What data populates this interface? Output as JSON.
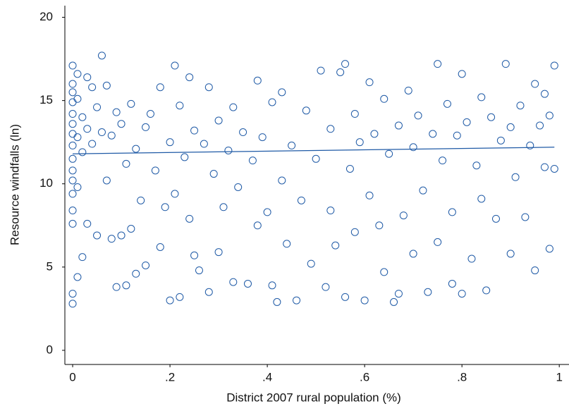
{
  "chart_data": {
    "type": "scatter",
    "x_label": "District 2007 rural population (%)",
    "y_label": "Resource windfalls (ln)",
    "xlim": [
      -0.016,
      1.02
    ],
    "ylim": [
      -0.85,
      20.7
    ],
    "xticks": [
      0,
      {
        "value": 0.2,
        "label": ".2"
      },
      {
        "value": 0.4,
        "label": ".4"
      },
      {
        "value": 0.6,
        "label": ".6"
      },
      {
        "value": 0.8,
        "label": ".8"
      },
      1
    ],
    "yticks": [
      0,
      5,
      10,
      15,
      20
    ],
    "grid": false,
    "color": "#1f5aa6",
    "x": [
      0,
      0,
      0,
      0,
      0,
      0,
      0,
      0,
      0,
      0,
      0,
      0,
      0,
      0,
      0,
      0,
      0.01,
      0.01,
      0.01,
      0.01,
      0.01,
      0.02,
      0.02,
      0.02,
      0.03,
      0.03,
      0.03,
      0.04,
      0.04,
      0.05,
      0.05,
      0.06,
      0.06,
      0.07,
      0.07,
      0.08,
      0.08,
      0.09,
      0.09,
      0.1,
      0.1,
      0.11,
      0.11,
      0.12,
      0.12,
      0.13,
      0.13,
      0.14,
      0.15,
      0.15,
      0.16,
      0.17,
      0.18,
      0.18,
      0.19,
      0.2,
      0.2,
      0.21,
      0.21,
      0.22,
      0.22,
      0.23,
      0.24,
      0.24,
      0.25,
      0.25,
      0.26,
      0.27,
      0.28,
      0.28,
      0.29,
      0.3,
      0.3,
      0.31,
      0.32,
      0.33,
      0.33,
      0.34,
      0.35,
      0.36,
      0.37,
      0.38,
      0.38,
      0.39,
      0.4,
      0.41,
      0.41,
      0.42,
      0.43,
      0.43,
      0.44,
      0.45,
      0.46,
      0.47,
      0.48,
      0.49,
      0.5,
      0.51,
      0.52,
      0.53,
      0.53,
      0.54,
      0.55,
      0.56,
      0.56,
      0.57,
      0.58,
      0.58,
      0.59,
      0.6,
      0.61,
      0.61,
      0.62,
      0.63,
      0.64,
      0.64,
      0.65,
      0.66,
      0.67,
      0.67,
      0.68,
      0.69,
      0.7,
      0.7,
      0.71,
      0.72,
      0.73,
      0.74,
      0.75,
      0.75,
      0.76,
      0.77,
      0.78,
      0.78,
      0.79,
      0.8,
      0.8,
      0.81,
      0.82,
      0.83,
      0.84,
      0.84,
      0.85,
      0.86,
      0.87,
      0.88,
      0.89,
      0.9,
      0.9,
      0.91,
      0.92,
      0.93,
      0.94,
      0.95,
      0.95,
      0.96,
      0.97,
      0.97,
      0.98,
      0.98,
      0.99,
      0.99
    ],
    "y": [
      2.8,
      3.4,
      7.6,
      8.4,
      9.4,
      10.2,
      10.8,
      11.5,
      12.3,
      13.0,
      13.6,
      14.2,
      14.9,
      15.5,
      16.0,
      17.1,
      9.8,
      12.8,
      15.1,
      16.6,
      4.4,
      5.6,
      11.9,
      14.0,
      13.3,
      16.4,
      7.6,
      12.4,
      15.8,
      6.9,
      14.6,
      17.7,
      13.1,
      10.2,
      15.9,
      6.7,
      12.9,
      3.8,
      14.3,
      6.9,
      13.6,
      3.9,
      11.2,
      7.3,
      14.8,
      4.6,
      12.1,
      9.0,
      5.1,
      13.4,
      14.2,
      10.8,
      6.2,
      15.8,
      8.6,
      12.5,
      3.0,
      17.1,
      9.4,
      3.2,
      14.7,
      11.6,
      7.9,
      16.4,
      5.7,
      13.2,
      4.8,
      12.4,
      15.8,
      3.5,
      10.6,
      5.9,
      13.8,
      8.6,
      12.0,
      4.1,
      14.6,
      9.8,
      13.1,
      4.0,
      11.4,
      16.2,
      7.5,
      12.8,
      8.3,
      3.9,
      14.9,
      2.9,
      10.2,
      15.5,
      6.4,
      12.3,
      3.0,
      9.0,
      14.4,
      5.2,
      11.5,
      16.8,
      3.8,
      8.4,
      13.3,
      6.3,
      16.7,
      17.2,
      3.2,
      10.9,
      14.2,
      7.1,
      12.5,
      3.0,
      16.1,
      9.3,
      13.0,
      7.5,
      4.7,
      15.1,
      11.8,
      2.9,
      3.4,
      13.5,
      8.1,
      15.6,
      12.2,
      5.8,
      14.1,
      9.6,
      3.5,
      13.0,
      17.2,
      6.5,
      11.4,
      14.8,
      4.0,
      8.3,
      12.9,
      16.6,
      3.4,
      13.7,
      5.5,
      11.1,
      15.2,
      9.1,
      3.6,
      14.0,
      7.9,
      12.6,
      17.2,
      13.4,
      5.8,
      10.4,
      14.7,
      8.0,
      12.3,
      16.0,
      4.8,
      13.5,
      11.0,
      15.4,
      6.1,
      14.1,
      17.1,
      10.9
    ],
    "fit_line": {
      "color": "#1f5aa6",
      "x": [
        0,
        0.99
      ],
      "y": [
        11.8,
        12.2
      ]
    }
  }
}
